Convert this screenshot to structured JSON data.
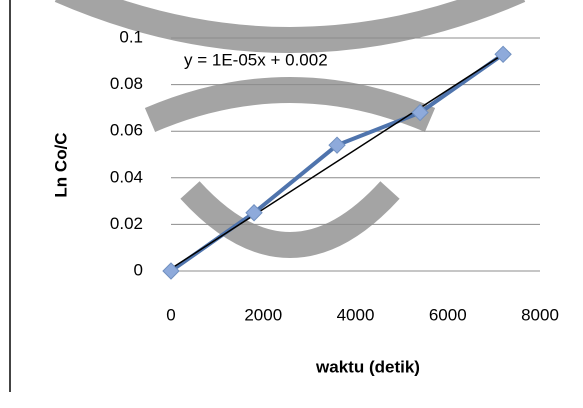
{
  "chart_data": {
    "type": "scatter",
    "y_label": "Ln Co/C",
    "x_label": "waktu (detik)",
    "annotation": "y = 1E-05x + 0.002",
    "x": [
      0,
      1800,
      3600,
      5400,
      7200
    ],
    "series": [
      {
        "color": "#4f74ad",
        "values": [
          0,
          0.025,
          0.054,
          0.068,
          0.093
        ]
      }
    ],
    "trendline": {
      "color": "#000000",
      "x": [
        0,
        7200
      ],
      "values": [
        0.001,
        0.093
      ]
    },
    "xlim": [
      0,
      8000
    ],
    "xticks": [
      0,
      2000,
      4000,
      6000,
      8000
    ],
    "ylim": [
      0,
      0.1
    ],
    "yticks": [
      0,
      0.02,
      0.04,
      0.06,
      0.08,
      0.1
    ],
    "grid": true
  }
}
